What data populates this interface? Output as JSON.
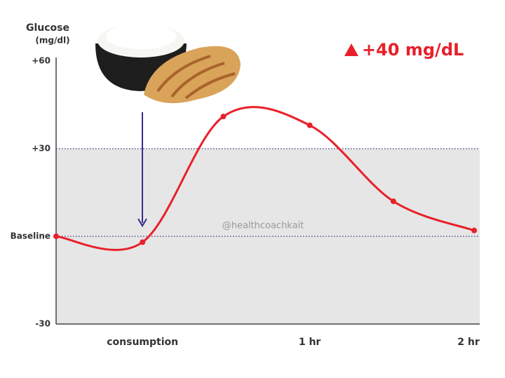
{
  "chart_data": {
    "type": "line",
    "y_label": "Glucose",
    "y_unit": "(mg/dl)",
    "annotation": "+40 mg/dL",
    "watermark": "@healthcoachkait",
    "x": [
      -31,
      0,
      29,
      60,
      90,
      119
    ],
    "series": [
      {
        "name": "Glucose",
        "color": "#e8202a",
        "values": [
          0,
          -2,
          41,
          38,
          12,
          2
        ]
      }
    ],
    "xlim": [
      -31,
      121
    ],
    "xticks": [
      {
        "value": 0,
        "label": "consumption"
      },
      {
        "value": 60,
        "label": "1 hr"
      },
      {
        "value": 120,
        "label": "2 hr"
      }
    ],
    "ylim": [
      -30,
      60
    ],
    "yticks": [
      {
        "value": 60,
        "label": "+60"
      },
      {
        "value": 30,
        "label": "+30"
      },
      {
        "value": 0,
        "label": "Baseline"
      },
      -30
    ],
    "shade_color": "#e6e6e6",
    "grid_color": "#3a2a8a"
  }
}
